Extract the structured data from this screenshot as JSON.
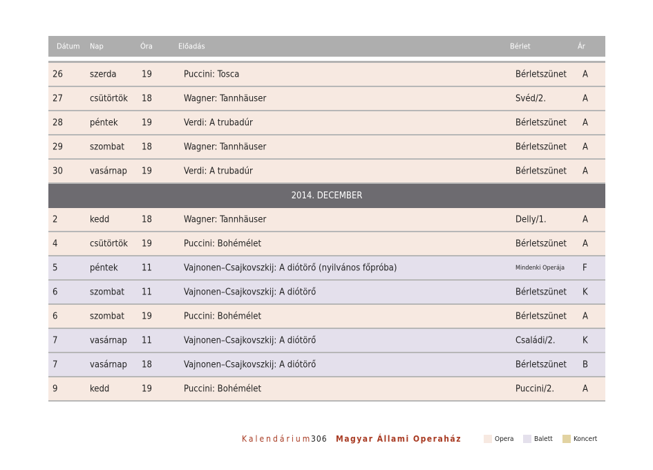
{
  "header": {
    "datum": "Dátum",
    "nap": "Nap",
    "ora": "Óra",
    "eloadas": "Előadás",
    "berlet": "Bérlet",
    "ar": "Ár"
  },
  "rows_before": [
    {
      "datum": "26",
      "nap": "szerda",
      "ora": "19",
      "eloadas": "Puccini: Tosca",
      "berlet": "Bérletszünet",
      "ar": "A",
      "type": "opera"
    },
    {
      "datum": "27",
      "nap": "csütörtök",
      "ora": "18",
      "eloadas": "Wagner: Tannhäuser",
      "berlet": "Svéd/2.",
      "ar": "A",
      "type": "opera"
    },
    {
      "datum": "28",
      "nap": "péntek",
      "ora": "19",
      "eloadas": "Verdi: A trubadúr",
      "berlet": "Bérletszünet",
      "ar": "A",
      "type": "opera"
    },
    {
      "datum": "29",
      "nap": "szombat",
      "ora": "18",
      "eloadas": "Wagner: Tannhäuser",
      "berlet": "Bérletszünet",
      "ar": "A",
      "type": "opera"
    },
    {
      "datum": "30",
      "nap": "vasárnap",
      "ora": "19",
      "eloadas": "Verdi: A trubadúr",
      "berlet": "Bérletszünet",
      "ar": "A",
      "type": "opera"
    }
  ],
  "month": "2014. DECEMBER",
  "rows_after": [
    {
      "datum": "2",
      "nap": "kedd",
      "ora": "18",
      "eloadas": "Wagner: Tannhäuser",
      "berlet": "Delly/1.",
      "ar": "A",
      "type": "opera"
    },
    {
      "datum": "4",
      "nap": "csütörtök",
      "ora": "19",
      "eloadas": "Puccini: Bohémélet",
      "berlet": "Bérletszünet",
      "ar": "A",
      "type": "opera"
    },
    {
      "datum": "5",
      "nap": "péntek",
      "ora": "11",
      "eloadas": "Vajnonen–Csajkovszkij: A diótörő (nyilvános főpróba)",
      "berlet": "Mindenki Operája",
      "ar": "F",
      "type": "balett"
    },
    {
      "datum": "6",
      "nap": "szombat",
      "ora": "11",
      "eloadas": "Vajnonen–Csajkovszkij: A diótörő",
      "berlet": "Bérletszünet",
      "ar": "K",
      "type": "balett"
    },
    {
      "datum": "6",
      "nap": "szombat",
      "ora": "19",
      "eloadas": "Puccini: Bohémélet",
      "berlet": "Bérletszünet",
      "ar": "A",
      "type": "opera"
    },
    {
      "datum": "7",
      "nap": "vasárnap",
      "ora": "11",
      "eloadas": "Vajnonen–Csajkovszkij: A diótörő",
      "berlet": "Családi/2.",
      "ar": "K",
      "type": "balett"
    },
    {
      "datum": "7",
      "nap": "vasárnap",
      "ora": "18",
      "eloadas": "Vajnonen–Csajkovszkij: A diótörő",
      "berlet": "Bérletszünet",
      "ar": "B",
      "type": "balett"
    },
    {
      "datum": "9",
      "nap": "kedd",
      "ora": "19",
      "eloadas": "Puccini: Bohémélet",
      "berlet": "Puccini/2.",
      "ar": "A",
      "type": "opera"
    }
  ],
  "footer": {
    "section": "Kalendárium",
    "page": "306",
    "org": "Magyar Állami Operaház"
  },
  "legend": [
    {
      "label": "Opera",
      "color": "#f7e9e1"
    },
    {
      "label": "Balett",
      "color": "#e4e0ec"
    },
    {
      "label": "Koncert",
      "color": "#e2d3a2"
    }
  ]
}
